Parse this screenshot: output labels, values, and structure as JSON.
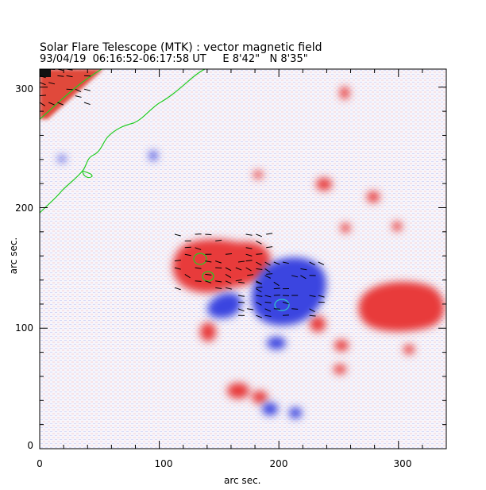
{
  "header": {
    "title": "Solar Flare Telescope (MTK) : vector magnetic field",
    "subtitle": "93/04/19  06:16:52-06:17:58 UT     E 8'42\"   N 8'35\""
  },
  "axes": {
    "xlabel": "arc sec.",
    "ylabel": "arc sec.",
    "x_ticks": [
      "0",
      "100",
      "200",
      "300"
    ],
    "y_ticks": [
      "0",
      "100",
      "200",
      "300"
    ],
    "xlim": [
      0,
      340
    ],
    "ylim": [
      0,
      315
    ]
  },
  "colors": {
    "positive_field": "#e83a3a",
    "negative_field": "#3a44e0",
    "contour": "#22cc22",
    "vector": "#000000"
  }
}
